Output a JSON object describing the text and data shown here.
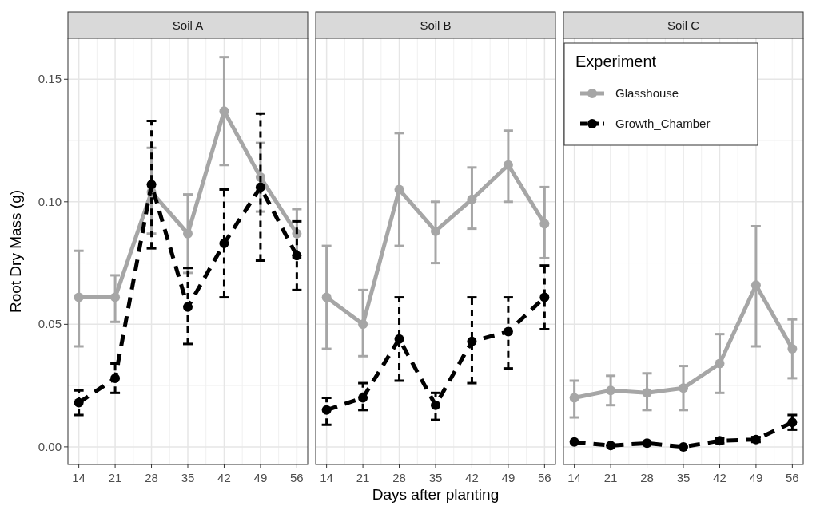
{
  "chart_data": [
    {
      "type": "line",
      "title": "Soil A",
      "ylabel": "Root Dry Mass (g)",
      "x": [
        14,
        21,
        28,
        35,
        42,
        49,
        56
      ],
      "xlim": [
        11.9,
        58.1
      ],
      "xticks": [
        14,
        21,
        28,
        35,
        42,
        49,
        56
      ],
      "ylim": [
        -0.0072,
        0.1667
      ],
      "yticks": [
        {
          "value": 0,
          "label": "0.00"
        },
        {
          "value": 0.05,
          "label": "0.05"
        },
        {
          "value": 0.1,
          "label": "0.10"
        },
        {
          "value": 0.15,
          "label": "0.15"
        }
      ],
      "grid": true,
      "marker": "circle",
      "series": [
        {
          "color": "#a6a6a6",
          "line_style": "solid",
          "values": [
            0.061,
            0.061,
            0.104,
            0.087,
            0.137,
            0.11,
            0.087
          ],
          "errors": [
            [
              0.041,
              0.08
            ],
            [
              0.051,
              0.07
            ],
            [
              0.087,
              0.122
            ],
            [
              0.071,
              0.103
            ],
            [
              0.115,
              0.159
            ],
            [
              0.096,
              0.124
            ],
            [
              0.077,
              0.097
            ]
          ]
        },
        {
          "color": "#000000",
          "line_style": "dashed",
          "values": [
            0.018,
            0.028,
            0.107,
            0.057,
            0.083,
            0.106,
            0.078
          ],
          "errors": [
            [
              0.013,
              0.023
            ],
            [
              0.022,
              0.034
            ],
            [
              0.081,
              0.133
            ],
            [
              0.042,
              0.073
            ],
            [
              0.061,
              0.105
            ],
            [
              0.076,
              0.136
            ],
            [
              0.064,
              0.092
            ]
          ]
        }
      ]
    },
    {
      "type": "line",
      "title": "Soil B",
      "xlabel": "Days after planting",
      "x": [
        14,
        21,
        28,
        35,
        42,
        49,
        56
      ],
      "xlim": [
        11.9,
        58.1
      ],
      "xticks": [
        14,
        21,
        28,
        35,
        42,
        49,
        56
      ],
      "ylim": [
        -0.0072,
        0.1667
      ],
      "yticks": [
        0,
        0.05,
        0.1,
        0.15
      ],
      "tick_labels": "x",
      "grid": true,
      "marker": "circle",
      "series": [
        {
          "color": "#a6a6a6",
          "line_style": "solid",
          "values": [
            0.061,
            0.05,
            0.105,
            0.088,
            0.101,
            0.115,
            0.091
          ],
          "errors": [
            [
              0.04,
              0.082
            ],
            [
              0.037,
              0.064
            ],
            [
              0.082,
              0.128
            ],
            [
              0.075,
              0.1
            ],
            [
              0.089,
              0.114
            ],
            [
              0.1,
              0.129
            ],
            [
              0.077,
              0.106
            ]
          ]
        },
        {
          "color": "#000000",
          "line_style": "dashed",
          "values": [
            0.015,
            0.02,
            0.044,
            0.017,
            0.043,
            0.047,
            0.061
          ],
          "errors": [
            [
              0.009,
              0.02
            ],
            [
              0.015,
              0.026
            ],
            [
              0.027,
              0.061
            ],
            [
              0.011,
              0.022
            ],
            [
              0.026,
              0.061
            ],
            [
              0.032,
              0.061
            ],
            [
              0.048,
              0.074
            ]
          ]
        }
      ]
    },
    {
      "type": "line",
      "title": "Soil C",
      "x": [
        14,
        21,
        28,
        35,
        42,
        49,
        56
      ],
      "xlim": [
        11.9,
        58.1
      ],
      "xticks": [
        14,
        21,
        28,
        35,
        42,
        49,
        56
      ],
      "ylim": [
        -0.0072,
        0.1667
      ],
      "yticks": [
        0,
        0.05,
        0.1,
        0.15
      ],
      "tick_labels": "x",
      "grid": true,
      "marker": "circle",
      "legend": "top left",
      "legend_title": "Experiment",
      "series": [
        {
          "name": "Glasshouse",
          "color": "#a6a6a6",
          "line_style": "solid",
          "values": [
            0.02,
            0.023,
            0.022,
            0.024,
            0.034,
            0.066,
            0.04
          ],
          "errors": [
            [
              0.012,
              0.027
            ],
            [
              0.017,
              0.029
            ],
            [
              0.015,
              0.03
            ],
            [
              0.015,
              0.033
            ],
            [
              0.022,
              0.046
            ],
            [
              0.041,
              0.09
            ],
            [
              0.028,
              0.052
            ]
          ]
        },
        {
          "name": "Growth_Chamber",
          "color": "#000000",
          "line_style": "dashed",
          "values": [
            0.002,
            0.0005,
            0.0015,
            0.0,
            0.0025,
            0.003,
            0.01
          ],
          "errors": [
            null,
            null,
            null,
            null,
            [
              0.0015,
              0.0035
            ],
            [
              0.002,
              0.004
            ],
            [
              0.007,
              0.013
            ]
          ]
        }
      ]
    }
  ]
}
